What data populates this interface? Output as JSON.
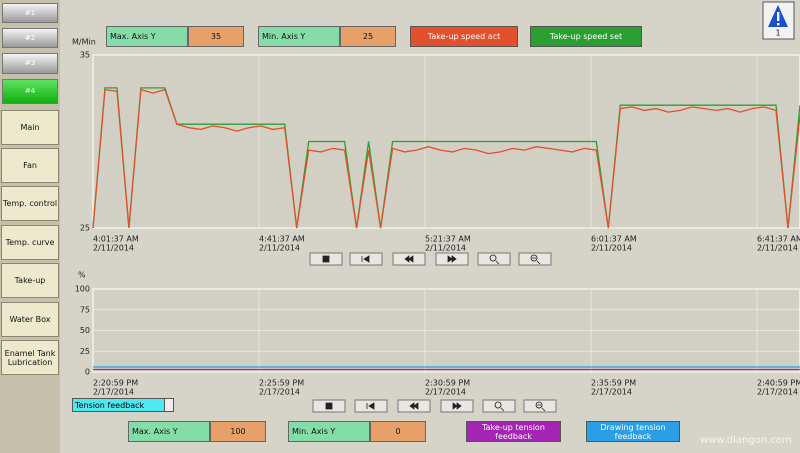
{
  "sidebar": {
    "channels": [
      "#1",
      "#2",
      "#3",
      "#4"
    ],
    "menu": [
      "Main",
      "Fan",
      "Temp. control",
      "Temp. curve",
      "Take-up",
      "Water Box",
      "Enamel Tank Lubrication"
    ]
  },
  "alarm": {
    "count": "1"
  },
  "watermark": "www.diangon.com",
  "chart_data": [
    {
      "type": "line",
      "y_label": "M/Min",
      "max_axis_label": "Max. Axis Y",
      "min_axis_label": "Min. Axis Y",
      "ylim": [
        25,
        35
      ],
      "yticks": [
        25,
        35
      ],
      "x_labels": [
        {
          "time": "4:01:37 AM",
          "date": "2/11/2014"
        },
        {
          "time": "4:41:37 AM",
          "date": "2/11/2014"
        },
        {
          "time": "5:21:37 AM",
          "date": "2/11/2014"
        },
        {
          "time": "6:01:37 AM",
          "date": "2/11/2014"
        },
        {
          "time": "6:41:37 AM",
          "date": "2/11/2014"
        }
      ],
      "grid": true,
      "series": [
        {
          "name": "Take-up speed set",
          "color": "#2aa032",
          "values": [
            25,
            33.1,
            33.1,
            25,
            33.1,
            33.1,
            33.1,
            31.0,
            31.0,
            31.0,
            31.0,
            31.0,
            31.0,
            31.0,
            31.0,
            31.0,
            31.0,
            25,
            30.0,
            30.0,
            30.0,
            30.0,
            25,
            30.0,
            25,
            30.0,
            30.0,
            30.0,
            30.0,
            30.0,
            30.0,
            30.0,
            30.0,
            30.0,
            30.0,
            30.0,
            30.0,
            30.0,
            30.0,
            30.0,
            30.0,
            30.0,
            30.0,
            25,
            32.1,
            32.1,
            32.1,
            32.1,
            32.1,
            32.1,
            32.1,
            32.1,
            32.1,
            32.1,
            32.1,
            32.1,
            32.1,
            32.1,
            25,
            32.1
          ]
        },
        {
          "name": "Take-up speed act",
          "color": "#e2502c",
          "values": [
            25,
            33.0,
            32.9,
            25,
            33.0,
            32.8,
            33.0,
            31.0,
            30.8,
            30.7,
            30.9,
            30.8,
            30.6,
            30.8,
            30.9,
            30.7,
            30.8,
            25,
            29.5,
            29.4,
            29.6,
            29.5,
            25,
            29.5,
            25,
            29.6,
            29.4,
            29.5,
            29.7,
            29.5,
            29.4,
            29.6,
            29.5,
            29.3,
            29.4,
            29.6,
            29.5,
            29.7,
            29.6,
            29.5,
            29.4,
            29.6,
            29.5,
            25,
            31.9,
            32.0,
            31.8,
            31.9,
            31.7,
            31.8,
            32.0,
            31.9,
            31.8,
            31.9,
            31.7,
            31.9,
            32.0,
            31.8,
            25,
            31.5
          ]
        }
      ]
    },
    {
      "type": "line",
      "y_label": "%",
      "selector": "Tension feedback",
      "max_axis_label": "Max. Axis Y",
      "min_axis_label": "Min. Axis Y",
      "ylim": [
        0,
        100
      ],
      "yticks": [
        0,
        25,
        50,
        75,
        100
      ],
      "x_labels": [
        {
          "time": "2:20:59 PM",
          "date": "2/17/2014"
        },
        {
          "time": "2:25:59 PM",
          "date": "2/17/2014"
        },
        {
          "time": "2:30:59 PM",
          "date": "2/17/2014"
        },
        {
          "time": "2:35:59 PM",
          "date": "2/17/2014"
        },
        {
          "time": "2:40:59 PM",
          "date": "2/17/2014"
        }
      ],
      "grid": true,
      "series": [
        {
          "name": "Take-up tension feedback",
          "color": "#a424b4",
          "values": [
            3,
            3,
            3,
            3,
            3
          ]
        },
        {
          "name": "Drawing tension feedback",
          "color": "#2a9ee6",
          "values": [
            6,
            6,
            6,
            6,
            6
          ]
        }
      ]
    }
  ]
}
